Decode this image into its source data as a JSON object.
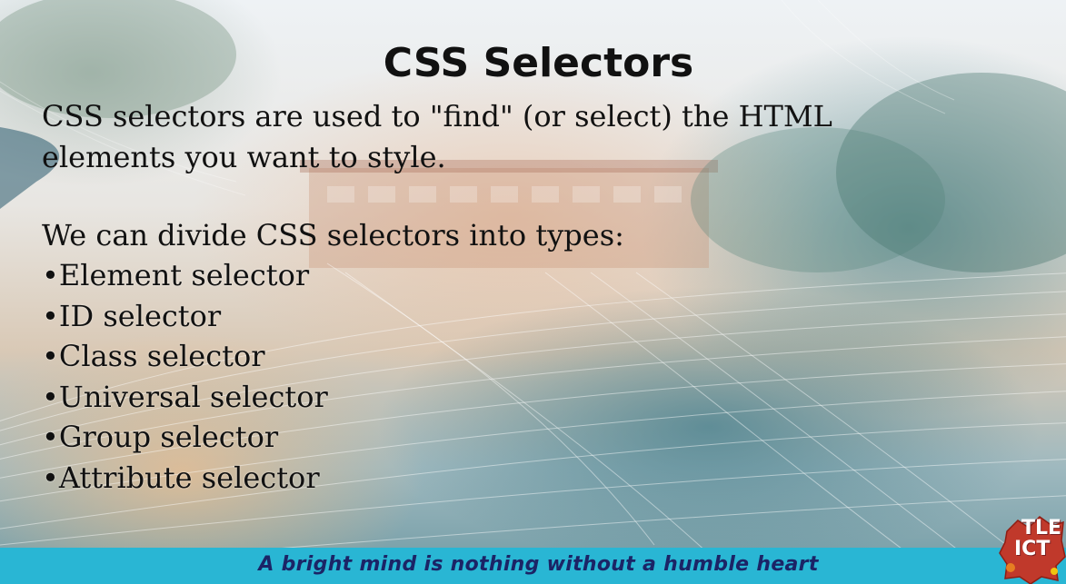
{
  "slide": {
    "title": "CSS Selectors",
    "intro": "CSS selectors are used to \"find\" (or select) the HTML elements you want to style.",
    "types_heading": "We can divide CSS selectors into types:",
    "selectors": [
      "•Element selector",
      "•ID selector",
      "•Class selector",
      "•Universal selector",
      "•Group selector",
      "•Attribute selector"
    ]
  },
  "footer": {
    "motto": "A bright mind is nothing without a humble heart",
    "bar_color": "#29b6d4",
    "text_color": "#1b2466"
  },
  "logo": {
    "line1": "TLE",
    "line2": "ICT",
    "color": "#c0392b"
  }
}
